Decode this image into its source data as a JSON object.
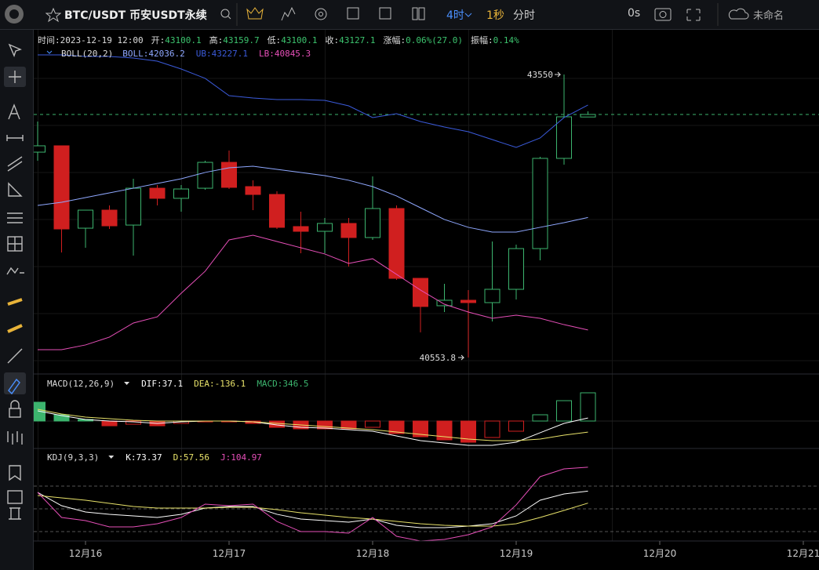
{
  "toolbar": {
    "symbol": "BTC/USDT 币安USDT永续",
    "intervals": [
      "4时",
      "1秒",
      "分时"
    ],
    "countdown": "0s",
    "layout_name": "未命名"
  },
  "info": [
    {
      "label": "时间:",
      "value": "2023-12-19 12:00"
    },
    {
      "label": "开:",
      "value": "43100.1"
    },
    {
      "label": "高:",
      "value": "43159.7"
    },
    {
      "label": "低:",
      "value": "43100.1"
    },
    {
      "label": "收:",
      "value": "43127.1"
    },
    {
      "label": "涨幅:",
      "value": "0.06%(27.0)"
    },
    {
      "label": "振幅:",
      "value": "0.14%"
    }
  ],
  "chart_data": {
    "type": "candlestick",
    "up_color": "#3cb46e",
    "down_color": "#d01f1f",
    "max_label": 43550,
    "min_label": 40553.8,
    "candles": [
      {
        "o": 42728,
        "h": 43052,
        "l": 42637,
        "c": 42795
      },
      {
        "o": 42795,
        "h": 42795,
        "l": 41666,
        "c": 41915
      },
      {
        "o": 41923,
        "h": 42114,
        "l": 41716,
        "c": 42114
      },
      {
        "o": 42114,
        "h": 42164,
        "l": 41915,
        "c": 41948
      },
      {
        "o": 41956,
        "h": 42446,
        "l": 41633,
        "c": 42346
      },
      {
        "o": 42346,
        "h": 42380,
        "l": 42164,
        "c": 42239
      },
      {
        "o": 42239,
        "h": 42380,
        "l": 42098,
        "c": 42338
      },
      {
        "o": 42346,
        "h": 42637,
        "l": 42330,
        "c": 42620
      },
      {
        "o": 42620,
        "h": 42745,
        "l": 42338,
        "c": 42355
      },
      {
        "o": 42363,
        "h": 42430,
        "l": 42114,
        "c": 42280
      },
      {
        "o": 42280,
        "h": 42313,
        "l": 41915,
        "c": 41932
      },
      {
        "o": 41940,
        "h": 42098,
        "l": 41658,
        "c": 41890
      },
      {
        "o": 41890,
        "h": 42031,
        "l": 41658,
        "c": 41973
      },
      {
        "o": 41973,
        "h": 42031,
        "l": 41517,
        "c": 41824
      },
      {
        "o": 41824,
        "h": 42471,
        "l": 41799,
        "c": 42131
      },
      {
        "o": 42131,
        "h": 42164,
        "l": 41375,
        "c": 41392
      },
      {
        "o": 41392,
        "h": 41392,
        "l": 40820,
        "c": 41094
      },
      {
        "o": 41102,
        "h": 41334,
        "l": 41035,
        "c": 41160
      },
      {
        "o": 41160,
        "h": 41268,
        "l": 40553.8,
        "c": 41135
      },
      {
        "o": 41135,
        "h": 41782,
        "l": 40936,
        "c": 41276
      },
      {
        "o": 41276,
        "h": 41749,
        "l": 41168,
        "c": 41707
      },
      {
        "o": 41707,
        "h": 42679,
        "l": 41583,
        "c": 42662
      },
      {
        "o": 42662,
        "h": 43550,
        "l": 42596,
        "c": 43102
      },
      {
        "o": 43100.1,
        "h": 43159.7,
        "l": 43100.1,
        "c": 43127.1
      }
    ],
    "boll": {
      "title": "BOLL(20,2)",
      "legend": [
        "BOLL:42036.2",
        "UB:43227.1",
        "LB:40845.3"
      ],
      "series": [
        {
          "name": "BOLL",
          "color": "#8fa8ff",
          "values": [
            42164,
            42197,
            42247,
            42297,
            42346,
            42396,
            42446,
            42513,
            42562,
            42579,
            42546,
            42513,
            42479,
            42430,
            42363,
            42264,
            42139,
            42015,
            41932,
            41882,
            41882,
            41932,
            41981,
            42036.2
          ]
        },
        {
          "name": "UB",
          "color": "#3b5bdb",
          "values": [
            43758,
            43758,
            43741,
            43741,
            43724,
            43691,
            43608,
            43509,
            43326,
            43301,
            43284,
            43284,
            43276,
            43218,
            43094,
            43135,
            43052,
            42994,
            42944,
            42861,
            42778,
            42878,
            43094,
            43227.1
          ]
        },
        {
          "name": "LB",
          "color": "#e64fb8",
          "values": [
            40637,
            40637,
            40687,
            40770,
            40919,
            40985,
            41234,
            41467,
            41799,
            41848,
            41782,
            41716,
            41650,
            41550,
            41600,
            41434,
            41268,
            41118,
            41035,
            40969,
            41002,
            40969,
            40902,
            40845.3
          ]
        }
      ]
    },
    "macd": {
      "title": "MACD(12,26,9)",
      "legend": [
        "DIF:37.1",
        "DEA:-136.1",
        "MACD:346.5"
      ],
      "hist": [
        231,
        77,
        19,
        -58,
        -39,
        -58,
        -29,
        -10,
        -10,
        -29,
        -77,
        -96,
        -96,
        -96,
        -77,
        -154,
        -193,
        -231,
        -260,
        -202,
        -125,
        77,
        250,
        346.5
      ],
      "series": [
        {
          "name": "DIF",
          "color": "#ffffff",
          "values": [
            125,
            67,
            19,
            0,
            -10,
            -29,
            -10,
            0,
            0,
            -10,
            -48,
            -77,
            -87,
            -106,
            -125,
            -183,
            -241,
            -270,
            -298,
            -298,
            -260,
            -144,
            -29,
            37.1
          ]
        },
        {
          "name": "DEA",
          "color": "#e8e26a",
          "values": [
            144,
            87,
            48,
            29,
            10,
            0,
            0,
            0,
            0,
            -10,
            -29,
            -48,
            -67,
            -87,
            -106,
            -135,
            -164,
            -193,
            -221,
            -241,
            -241,
            -221,
            -173,
            -136.1
          ]
        }
      ]
    },
    "kdj": {
      "title": "KDJ(9,3,3)",
      "legend": [
        "K:73.37",
        "D:57.56",
        "J:104.97"
      ],
      "series": [
        {
          "name": "K",
          "color": "#ffffff",
          "values": [
            71.7,
            54.1,
            45.9,
            42.8,
            40.7,
            38.6,
            42.8,
            51,
            53.1,
            53.1,
            42.8,
            36.5,
            34.5,
            32.4,
            36.5,
            28.3,
            25.2,
            25.2,
            27.2,
            30.3,
            40.7,
            61.4,
            69.6,
            73.37
          ]
        },
        {
          "name": "D",
          "color": "#e8e26a",
          "values": [
            67.6,
            64.5,
            61.4,
            57.2,
            53.1,
            51,
            51,
            51,
            52.1,
            52.1,
            49,
            44.8,
            41.7,
            38.6,
            36.5,
            33.4,
            30.3,
            28.3,
            27.2,
            27.2,
            30.3,
            38.6,
            47.9,
            57.56
          ]
        },
        {
          "name": "J",
          "color": "#e64fb8",
          "values": [
            71.7,
            38.6,
            34.5,
            26.2,
            26.2,
            30.3,
            38.6,
            56.2,
            54.1,
            56.2,
            33.4,
            20,
            20,
            17.9,
            38.6,
            13.8,
            7.6,
            9.7,
            15.9,
            26.2,
            55.2,
            92.4,
            102.7,
            104.97
          ]
        }
      ]
    },
    "x_labels": [
      "12月16",
      "12月17",
      "12月18",
      "12月19",
      "12月20",
      "12月21"
    ]
  }
}
